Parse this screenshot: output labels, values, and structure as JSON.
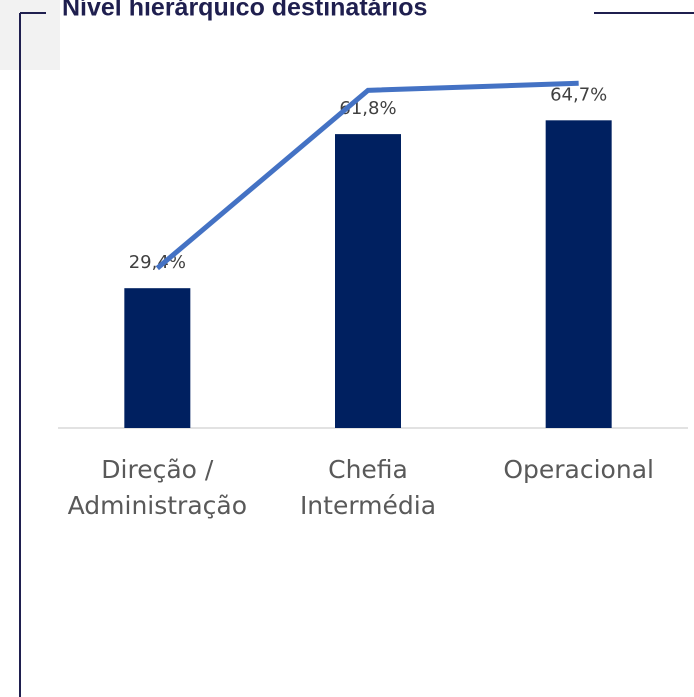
{
  "chart_data": {
    "type": "bar",
    "title": "Nível hierárquico destinatários",
    "categories": [
      "Direção / Administração",
      "Chefia Intermédia",
      "Operacional"
    ],
    "series": [
      {
        "type": "bar",
        "color": "#002060",
        "values": [
          29.4,
          61.8,
          64.7
        ],
        "value_labels": [
          "29,4%",
          "61,8%",
          "64,7%"
        ]
      },
      {
        "type": "line",
        "color": "#4472c4",
        "values": [
          33.6,
          71,
          72.5
        ]
      }
    ],
    "ylim": [
      0,
      90
    ]
  }
}
